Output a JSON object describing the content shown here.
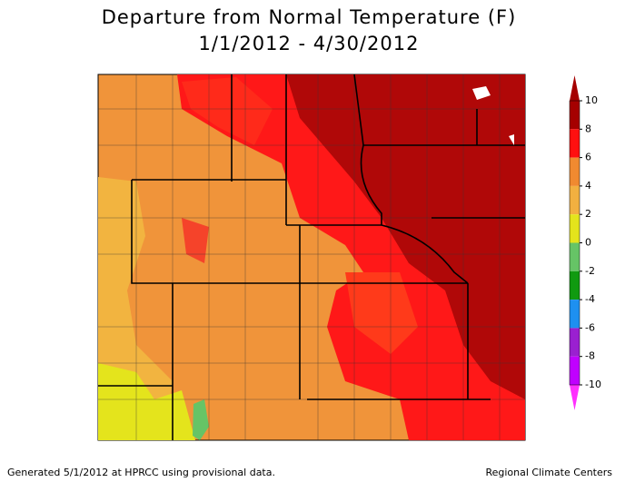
{
  "header": {
    "title": "Departure from Normal Temperature (F)",
    "subtitle": "1/1/2012 - 4/30/2012"
  },
  "colorbar": {
    "ticks": [
      10,
      8,
      6,
      4,
      2,
      0,
      -2,
      -4,
      -6,
      -8,
      -10
    ],
    "colors": [
      "#a50000",
      "#ff1010",
      "#f08a30",
      "#f2b040",
      "#e4e41c",
      "#66c466",
      "#109a10",
      "#1e90f0",
      "#9a20d0",
      "#c000ff"
    ],
    "top_color": "#a50000",
    "bottom_color": "#ff30ff"
  },
  "footer": {
    "left": "Generated 5/1/2012 at HPRCC using provisional data.",
    "right": "Regional Climate Centers"
  }
}
